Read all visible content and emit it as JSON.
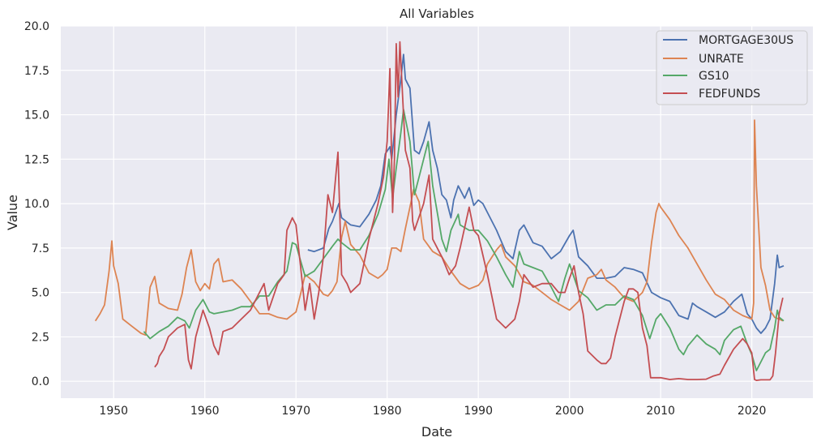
{
  "chart_data": {
    "type": "line",
    "title": "All Variables",
    "xlabel": "Date",
    "ylabel": "Value",
    "xlim": [
      1944.2,
      2026.7
    ],
    "ylim": [
      -0.95,
      20.0
    ],
    "xticks": [
      1950,
      1960,
      1970,
      1980,
      1990,
      2000,
      2010,
      2020
    ],
    "xtick_labels": [
      "1950",
      "1960",
      "1970",
      "1980",
      "1990",
      "2000",
      "2010",
      "2020"
    ],
    "yticks": [
      0,
      2.5,
      5,
      7.5,
      10,
      12.5,
      15,
      17.5,
      20
    ],
    "ytick_labels": [
      "0.0",
      "2.5",
      "5.0",
      "7.5",
      "10.0",
      "12.5",
      "15.0",
      "17.5",
      "20.0"
    ],
    "grid": true,
    "legend_position": "top-right",
    "background_color": "#eaeaf2",
    "grid_color": "#ffffff",
    "series": [
      {
        "name": "MORTGAGE30US",
        "color": "#4c72b0",
        "x": [
          1971.3,
          1972.0,
          1973.0,
          1973.6,
          1974.0,
          1974.7,
          1975.0,
          1976.0,
          1977.0,
          1978.0,
          1978.8,
          1979.3,
          1979.8,
          1980.3,
          1980.5,
          1980.8,
          1981.0,
          1981.5,
          1981.8,
          1982.0,
          1982.5,
          1983.0,
          1983.5,
          1984.0,
          1984.6,
          1985.0,
          1985.5,
          1986.0,
          1986.5,
          1987.0,
          1987.3,
          1987.8,
          1988.5,
          1989.0,
          1989.5,
          1990.0,
          1990.5,
          1991.0,
          1992.0,
          1993.0,
          1993.8,
          1994.5,
          1995.0,
          1996.0,
          1997.0,
          1998.0,
          1999.0,
          2000.0,
          2000.4,
          2001.0,
          2002.0,
          2003.0,
          2004.0,
          2005.0,
          2006.0,
          2007.0,
          2008.0,
          2009.0,
          2010.0,
          2011.0,
          2012.0,
          2013.0,
          2013.5,
          2014.0,
          2015.0,
          2016.0,
          2017.0,
          2018.0,
          2018.9,
          2019.5,
          2020.0,
          2020.5,
          2021.0,
          2021.5,
          2022.0,
          2022.5,
          2022.8,
          2023.0,
          2023.5
        ],
        "values": [
          7.4,
          7.3,
          7.5,
          8.6,
          9.0,
          10.0,
          9.2,
          8.8,
          8.7,
          9.4,
          10.2,
          11.0,
          12.8,
          13.2,
          12.5,
          14.0,
          15.0,
          17.0,
          18.4,
          17.0,
          16.5,
          13.0,
          12.8,
          13.5,
          14.6,
          13.0,
          12.0,
          10.5,
          10.2,
          9.2,
          10.2,
          11.0,
          10.3,
          10.9,
          9.9,
          10.2,
          10.0,
          9.5,
          8.5,
          7.3,
          6.9,
          8.5,
          8.8,
          7.8,
          7.6,
          6.9,
          7.3,
          8.2,
          8.5,
          7.0,
          6.5,
          5.8,
          5.8,
          5.9,
          6.4,
          6.3,
          6.1,
          5.0,
          4.7,
          4.5,
          3.7,
          3.5,
          4.4,
          4.2,
          3.9,
          3.6,
          3.9,
          4.5,
          4.9,
          3.8,
          3.5,
          3.0,
          2.7,
          3.0,
          3.5,
          5.5,
          7.1,
          6.4,
          6.5
        ]
      },
      {
        "name": "UNRATE",
        "color": "#dd8452",
        "x": [
          1948.0,
          1948.5,
          1949.0,
          1949.5,
          1949.8,
          1950.0,
          1950.5,
          1951.0,
          1952.0,
          1953.0,
          1953.5,
          1954.0,
          1954.5,
          1955.0,
          1956.0,
          1957.0,
          1957.5,
          1958.0,
          1958.5,
          1959.0,
          1959.5,
          1960.0,
          1960.5,
          1961.0,
          1961.5,
          1962.0,
          1963.0,
          1964.0,
          1965.0,
          1966.0,
          1967.0,
          1968.0,
          1969.0,
          1970.0,
          1970.5,
          1971.0,
          1972.0,
          1973.0,
          1973.5,
          1974.0,
          1974.5,
          1975.0,
          1975.4,
          1976.0,
          1977.0,
          1978.0,
          1979.0,
          1979.5,
          1980.0,
          1980.5,
          1981.0,
          1981.5,
          1982.0,
          1982.5,
          1982.9,
          1983.5,
          1984.0,
          1985.0,
          1986.0,
          1987.0,
          1988.0,
          1989.0,
          1990.0,
          1990.5,
          1991.0,
          1992.0,
          1992.5,
          1993.0,
          1994.0,
          1995.0,
          1996.0,
          1997.0,
          1998.0,
          1999.0,
          2000.0,
          2001.0,
          2002.0,
          2003.0,
          2003.5,
          2004.0,
          2005.0,
          2006.0,
          2007.0,
          2008.0,
          2008.5,
          2009.0,
          2009.5,
          2009.8,
          2010.0,
          2011.0,
          2012.0,
          2013.0,
          2014.0,
          2015.0,
          2016.0,
          2017.0,
          2018.0,
          2019.0,
          2020.0,
          2020.2,
          2020.3,
          2020.5,
          2021.0,
          2021.5,
          2022.0,
          2022.5,
          2023.0,
          2023.4
        ],
        "values": [
          3.4,
          3.8,
          4.3,
          6.2,
          7.9,
          6.5,
          5.5,
          3.5,
          3.1,
          2.7,
          2.6,
          5.3,
          5.9,
          4.4,
          4.1,
          4.0,
          4.9,
          6.4,
          7.4,
          5.6,
          5.1,
          5.5,
          5.2,
          6.6,
          6.9,
          5.6,
          5.7,
          5.2,
          4.5,
          3.8,
          3.8,
          3.6,
          3.5,
          3.9,
          4.9,
          6.0,
          5.6,
          4.9,
          4.8,
          5.1,
          5.6,
          8.1,
          9.0,
          7.7,
          7.1,
          6.1,
          5.8,
          6.0,
          6.3,
          7.5,
          7.5,
          7.3,
          8.6,
          9.8,
          10.8,
          10.1,
          8.0,
          7.3,
          7.0,
          6.2,
          5.5,
          5.2,
          5.4,
          5.7,
          6.6,
          7.4,
          7.7,
          7.0,
          6.5,
          5.6,
          5.4,
          5.0,
          4.6,
          4.3,
          4.0,
          4.5,
          5.8,
          6.0,
          6.3,
          5.7,
          5.3,
          4.7,
          4.5,
          5.0,
          5.6,
          7.8,
          9.5,
          10.0,
          9.8,
          9.1,
          8.2,
          7.5,
          6.6,
          5.7,
          4.9,
          4.6,
          4.0,
          3.7,
          3.5,
          4.4,
          14.7,
          11.0,
          6.4,
          5.4,
          4.0,
          3.6,
          3.5,
          3.4
        ]
      },
      {
        "name": "GS10",
        "color": "#55a868",
        "x": [
          1953.3,
          1954.0,
          1955.0,
          1956.0,
          1957.0,
          1957.8,
          1958.3,
          1959.0,
          1959.8,
          1960.5,
          1961.0,
          1962.0,
          1963.0,
          1964.0,
          1965.0,
          1966.0,
          1967.0,
          1968.0,
          1969.0,
          1969.6,
          1970.0,
          1970.5,
          1971.0,
          1972.0,
          1973.0,
          1974.0,
          1974.6,
          1975.0,
          1976.0,
          1977.0,
          1978.0,
          1979.0,
          1979.8,
          1980.2,
          1980.6,
          1981.0,
          1981.5,
          1981.8,
          1982.5,
          1983.0,
          1983.5,
          1984.0,
          1984.5,
          1985.0,
          1986.0,
          1986.5,
          1987.0,
          1987.8,
          1988.0,
          1989.0,
          1990.0,
          1991.0,
          1992.0,
          1993.0,
          1993.8,
          1994.5,
          1995.0,
          1996.0,
          1997.0,
          1998.0,
          1998.8,
          1999.5,
          2000.0,
          2001.0,
          2002.0,
          2003.0,
          2004.0,
          2005.0,
          2006.0,
          2007.0,
          2008.0,
          2008.8,
          2009.5,
          2010.0,
          2011.0,
          2012.0,
          2012.5,
          2013.0,
          2014.0,
          2015.0,
          2016.0,
          2016.5,
          2017.0,
          2018.0,
          2018.8,
          2019.5,
          2020.0,
          2020.5,
          2021.0,
          2021.5,
          2022.0,
          2022.5,
          2022.8,
          2023.0,
          2023.5
        ],
        "values": [
          2.8,
          2.4,
          2.8,
          3.1,
          3.6,
          3.4,
          3.0,
          4.0,
          4.6,
          3.9,
          3.8,
          3.9,
          4.0,
          4.2,
          4.2,
          4.8,
          4.8,
          5.6,
          6.2,
          7.8,
          7.7,
          6.8,
          5.9,
          6.2,
          6.9,
          7.6,
          8.0,
          7.8,
          7.4,
          7.4,
          8.2,
          9.4,
          10.8,
          12.5,
          10.3,
          12.0,
          14.0,
          15.3,
          13.5,
          10.5,
          11.5,
          12.5,
          13.5,
          11.0,
          8.0,
          7.3,
          8.5,
          9.4,
          8.8,
          8.5,
          8.5,
          7.9,
          7.0,
          6.0,
          5.3,
          7.3,
          6.6,
          6.4,
          6.2,
          5.3,
          4.5,
          5.8,
          6.6,
          5.1,
          4.7,
          4.0,
          4.3,
          4.3,
          4.8,
          4.6,
          3.7,
          2.4,
          3.5,
          3.8,
          3.0,
          1.8,
          1.5,
          2.0,
          2.6,
          2.1,
          1.8,
          1.5,
          2.3,
          2.9,
          3.1,
          2.1,
          1.5,
          0.6,
          1.1,
          1.6,
          1.8,
          3.0,
          4.0,
          3.6,
          3.4
        ]
      },
      {
        "name": "FEDFUNDS",
        "color": "#c44e52",
        "x": [
          1954.5,
          1954.8,
          1955.0,
          1955.5,
          1956.0,
          1957.0,
          1957.8,
          1958.2,
          1958.5,
          1959.0,
          1959.8,
          1960.5,
          1961.0,
          1961.5,
          1962.0,
          1963.0,
          1964.0,
          1965.0,
          1966.0,
          1966.5,
          1967.0,
          1968.0,
          1968.7,
          1969.0,
          1969.6,
          1970.0,
          1970.5,
          1971.0,
          1971.5,
          1972.0,
          1972.5,
          1973.0,
          1973.5,
          1974.0,
          1974.6,
          1975.0,
          1975.6,
          1976.0,
          1977.0,
          1978.0,
          1979.0,
          1979.6,
          1980.0,
          1980.3,
          1980.6,
          1980.8,
          1981.0,
          1981.2,
          1981.4,
          1981.8,
          1982.0,
          1982.5,
          1982.8,
          1983.0,
          1984.0,
          1984.6,
          1985.0,
          1986.0,
          1986.8,
          1987.5,
          1988.0,
          1989.0,
          1989.5,
          1990.0,
          1991.0,
          1992.0,
          1993.0,
          1994.0,
          1994.5,
          1995.0,
          1996.0,
          1997.0,
          1998.0,
          1998.8,
          1999.5,
          2000.0,
          2000.5,
          2001.0,
          2001.5,
          2002.0,
          2003.0,
          2003.5,
          2004.0,
          2004.5,
          2005.0,
          2006.0,
          2006.5,
          2007.0,
          2007.5,
          2008.0,
          2008.5,
          2008.9,
          2009.0,
          2010.0,
          2011.0,
          2012.0,
          2013.0,
          2014.0,
          2015.0,
          2015.8,
          2016.5,
          2017.0,
          2018.0,
          2019.0,
          2019.5,
          2020.0,
          2020.3,
          2020.5,
          2021.0,
          2022.0,
          2022.3,
          2022.6,
          2023.0,
          2023.4
        ],
        "values": [
          0.8,
          1.0,
          1.4,
          1.8,
          2.5,
          3.0,
          3.2,
          1.2,
          0.7,
          2.5,
          4.0,
          3.0,
          2.0,
          1.5,
          2.8,
          3.0,
          3.5,
          4.0,
          5.0,
          5.5,
          4.0,
          5.5,
          6.0,
          8.5,
          9.2,
          8.8,
          6.5,
          4.0,
          5.5,
          3.5,
          5.0,
          7.0,
          10.5,
          9.5,
          12.9,
          6.0,
          5.5,
          5.0,
          5.5,
          8.0,
          10.0,
          11.5,
          13.5,
          17.6,
          9.5,
          12.5,
          19.0,
          16.0,
          19.1,
          15.0,
          13.0,
          12.0,
          9.0,
          8.5,
          10.0,
          11.6,
          8.0,
          7.0,
          6.0,
          6.5,
          7.5,
          9.8,
          8.5,
          8.2,
          6.0,
          3.5,
          3.0,
          3.5,
          4.5,
          6.0,
          5.3,
          5.5,
          5.5,
          5.0,
          5.0,
          5.8,
          6.5,
          5.0,
          3.8,
          1.7,
          1.2,
          1.0,
          1.0,
          1.3,
          2.5,
          4.5,
          5.2,
          5.2,
          5.0,
          3.0,
          2.0,
          0.2,
          0.2,
          0.2,
          0.1,
          0.15,
          0.1,
          0.1,
          0.12,
          0.3,
          0.4,
          0.9,
          1.8,
          2.4,
          2.1,
          1.6,
          0.1,
          0.05,
          0.08,
          0.08,
          0.3,
          1.6,
          3.8,
          4.7
        ]
      }
    ]
  }
}
